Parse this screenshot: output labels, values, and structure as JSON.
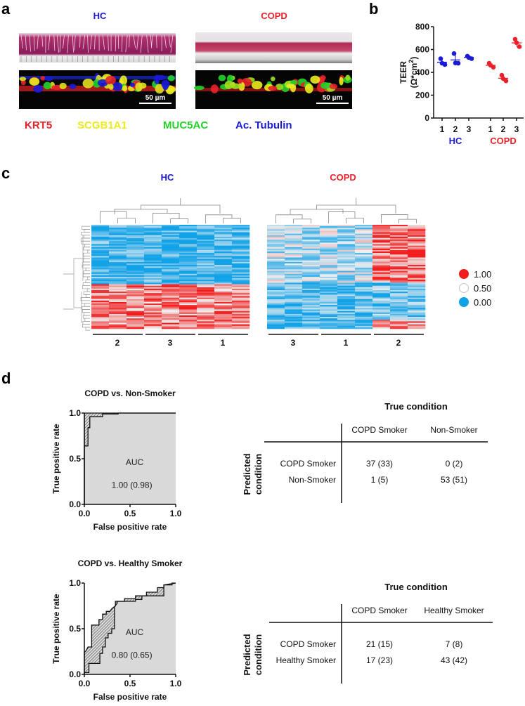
{
  "panels": {
    "a": "a",
    "b": "b",
    "c": "c",
    "d": "d"
  },
  "colors": {
    "hc": "#1a1ad6",
    "copd": "#e8222a",
    "krt5": "#e8222a",
    "scgb1a1": "#ecec1e",
    "muc5ac": "#22d42a",
    "tubulin": "#1a1ad6",
    "heat_low": "#12a2e8",
    "heat_mid": "#eeeeee",
    "heat_high": "#f21c1c"
  },
  "panel_a": {
    "hc_label": "HC",
    "copd_label": "COPD",
    "scale_bar_hc": "50 µm",
    "scale_bar_copd": "50 µm",
    "stain_legend": [
      "KRT5",
      "SCGB1A1",
      "MUC5AC",
      "Ac. Tubulin"
    ]
  },
  "chart_data": [
    {
      "id": "teer",
      "type": "scatter",
      "ylabel_parts": [
        "TEER",
        "(Ω*cm",
        "2",
        ")"
      ],
      "ylim": [
        0,
        800
      ],
      "yticks": [
        "0",
        "200",
        "400",
        "600",
        "800"
      ],
      "categories": [
        "1",
        "2",
        "3",
        "1",
        "2",
        "3"
      ],
      "groups": [
        "HC",
        "HC",
        "HC",
        "COPD",
        "COPD",
        "COPD"
      ],
      "group_labels": [
        "HC",
        "COPD"
      ],
      "values": [
        [
          520,
          480,
          468
        ],
        [
          565,
          482,
          480
        ],
        [
          542,
          530,
          520
        ],
        [
          480,
          462,
          445
        ],
        [
          375,
          345,
          325
        ],
        [
          690,
          660,
          625
        ]
      ],
      "means": [
        489,
        509,
        531,
        462,
        348,
        658
      ]
    },
    {
      "id": "heatmap",
      "type": "heatmap",
      "titles": [
        "HC",
        "COPD"
      ],
      "column_groups": [
        [
          "2",
          "3",
          "1"
        ],
        [
          "3",
          "1",
          "2"
        ]
      ],
      "columns_per_group": 3,
      "rows": 70,
      "colorscale_labels": [
        "1.00",
        "0.50",
        "0.00"
      ],
      "colorscale_values": [
        1.0,
        0.5,
        0.0
      ]
    },
    {
      "id": "roc1",
      "type": "line",
      "title": "COPD vs. Non-Smoker",
      "xlabel": "False positive rate",
      "ylabel": "True positive rate",
      "xticks": [
        "0.0",
        "0.5",
        "1.0"
      ],
      "yticks": [
        "0.0",
        "0.5",
        "1.0"
      ],
      "xlim": [
        0,
        1
      ],
      "ylim": [
        0,
        1
      ],
      "auc_label": "AUC",
      "auc_value": "1.00 (0.98)",
      "series": [
        {
          "name": "upper",
          "points": [
            [
              0,
              0
            ],
            [
              0,
              1
            ],
            [
              1,
              1
            ]
          ]
        },
        {
          "name": "lower",
          "points": [
            [
              0,
              0
            ],
            [
              0,
              0.64
            ],
            [
              0.04,
              0.64
            ],
            [
              0.04,
              0.84
            ],
            [
              0.06,
              0.84
            ],
            [
              0.06,
              0.96
            ],
            [
              0.2,
              0.96
            ],
            [
              0.2,
              0.99
            ],
            [
              0.37,
              0.99
            ],
            [
              0.37,
              1
            ],
            [
              1,
              1
            ]
          ]
        }
      ]
    },
    {
      "id": "roc2",
      "type": "line",
      "title": "COPD vs. Healthy Smoker",
      "xlabel": "False positive rate",
      "ylabel": "True positive rate",
      "xticks": [
        "0.0",
        "0.5",
        "1.0"
      ],
      "yticks": [
        "0.0",
        "0.5",
        "1.0"
      ],
      "xlim": [
        0,
        1
      ],
      "ylim": [
        0,
        1
      ],
      "auc_label": "AUC",
      "auc_value": "0.80 (0.65)",
      "series": [
        {
          "name": "upper",
          "points": [
            [
              0,
              0
            ],
            [
              0,
              0.24
            ],
            [
              0.02,
              0.26
            ],
            [
              0.04,
              0.3
            ],
            [
              0.08,
              0.3
            ],
            [
              0.08,
              0.54
            ],
            [
              0.16,
              0.54
            ],
            [
              0.16,
              0.6
            ],
            [
              0.2,
              0.6
            ],
            [
              0.2,
              0.66
            ],
            [
              0.24,
              0.66
            ],
            [
              0.24,
              0.69
            ],
            [
              0.28,
              0.69
            ],
            [
              0.3,
              0.72
            ],
            [
              0.34,
              0.75
            ],
            [
              0.34,
              0.8
            ],
            [
              0.44,
              0.8
            ],
            [
              0.44,
              0.83
            ],
            [
              0.56,
              0.83
            ],
            [
              0.56,
              0.86
            ],
            [
              0.68,
              0.86
            ],
            [
              0.68,
              0.9
            ],
            [
              0.8,
              0.9
            ],
            [
              0.8,
              0.95
            ],
            [
              0.87,
              0.95
            ],
            [
              0.87,
              0.98
            ],
            [
              0.96,
              0.98
            ],
            [
              0.96,
              1
            ],
            [
              1,
              1
            ]
          ]
        },
        {
          "name": "lower",
          "points": [
            [
              0,
              0
            ],
            [
              0,
              0.02
            ],
            [
              0.05,
              0.02
            ],
            [
              0.05,
              0.12
            ],
            [
              0.17,
              0.12
            ],
            [
              0.17,
              0.23
            ],
            [
              0.2,
              0.23
            ],
            [
              0.2,
              0.3
            ],
            [
              0.23,
              0.3
            ],
            [
              0.23,
              0.4
            ],
            [
              0.26,
              0.4
            ],
            [
              0.26,
              0.45
            ],
            [
              0.3,
              0.45
            ],
            [
              0.3,
              0.5
            ],
            [
              0.33,
              0.5
            ],
            [
              0.33,
              0.74
            ],
            [
              0.36,
              0.78
            ],
            [
              0.36,
              0.8
            ],
            [
              0.56,
              0.8
            ],
            [
              0.56,
              0.82
            ],
            [
              0.63,
              0.82
            ],
            [
              0.63,
              0.86
            ],
            [
              0.87,
              0.86
            ],
            [
              0.87,
              0.98
            ],
            [
              1,
              1
            ]
          ]
        }
      ]
    },
    {
      "id": "confusion1",
      "type": "table",
      "title": "True condition",
      "row_title": [
        "Predicted",
        "condition"
      ],
      "columns": [
        "COPD Smoker",
        "Non-Smoker"
      ],
      "rows": [
        {
          "label": "COPD Smoker",
          "cells": [
            "37 (33)",
            "0 (2)"
          ]
        },
        {
          "label": "Non-Smoker",
          "cells": [
            "1 (5)",
            "53 (51)"
          ]
        }
      ]
    },
    {
      "id": "confusion2",
      "type": "table",
      "title": "True condition",
      "row_title": [
        "Predicted",
        "condition"
      ],
      "columns": [
        "COPD Smoker",
        "Healthy Smoker"
      ],
      "rows": [
        {
          "label": "COPD Smoker",
          "cells": [
            "21 (15)",
            "7 (8)"
          ]
        },
        {
          "label": "Healthy Smoker",
          "cells": [
            "17 (23)",
            "43 (42)"
          ]
        }
      ]
    }
  ]
}
